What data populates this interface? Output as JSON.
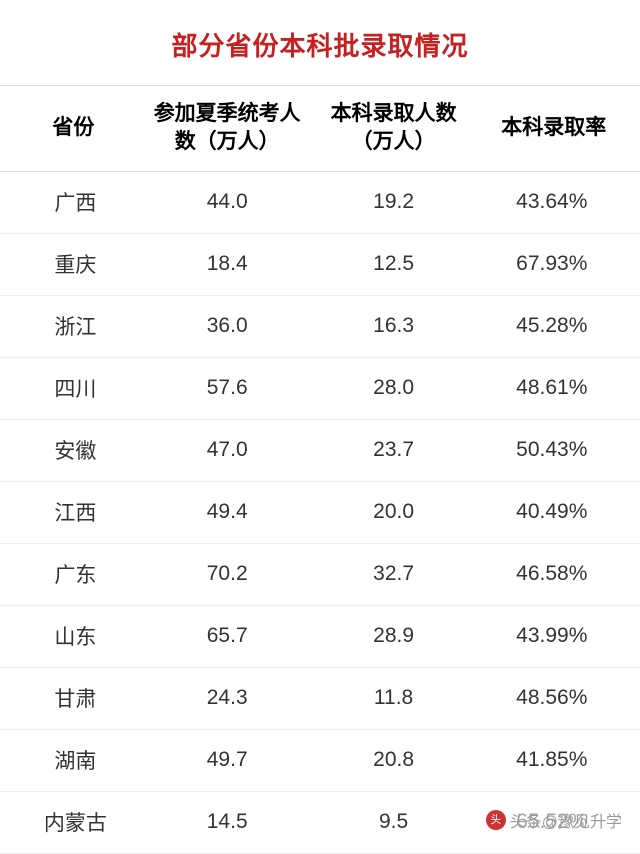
{
  "title": {
    "text": "部分省份本科批录取情况",
    "color": "#c62020"
  },
  "watermark": {
    "icon_label": "头条",
    "text": "头条@豫见升学",
    "text_color": "#9a9a9a"
  },
  "table": {
    "type": "table",
    "header_color": "#000000",
    "cell_color": "#333333",
    "border_color": "#e8e8e8",
    "columns": [
      "省份",
      "参加夏季统考人数（万人）",
      "本科录取人数（万人）",
      "本科录取率"
    ],
    "rows": [
      [
        "广西",
        "44.0",
        "19.2",
        "43.64%"
      ],
      [
        "重庆",
        "18.4",
        "12.5",
        "67.93%"
      ],
      [
        "浙江",
        "36.0",
        "16.3",
        "45.28%"
      ],
      [
        "四川",
        "57.6",
        "28.0",
        "48.61%"
      ],
      [
        "安徽",
        "47.0",
        "23.7",
        "50.43%"
      ],
      [
        "江西",
        "49.4",
        "20.0",
        "40.49%"
      ],
      [
        "广东",
        "70.2",
        "32.7",
        "46.58%"
      ],
      [
        "山东",
        "65.7",
        "28.9",
        "43.99%"
      ],
      [
        "甘肃",
        "24.3",
        "11.8",
        "48.56%"
      ],
      [
        "湖南",
        "49.7",
        "20.8",
        "41.85%"
      ],
      [
        "内蒙古",
        "14.5",
        "9.5",
        "65.52%"
      ]
    ]
  }
}
